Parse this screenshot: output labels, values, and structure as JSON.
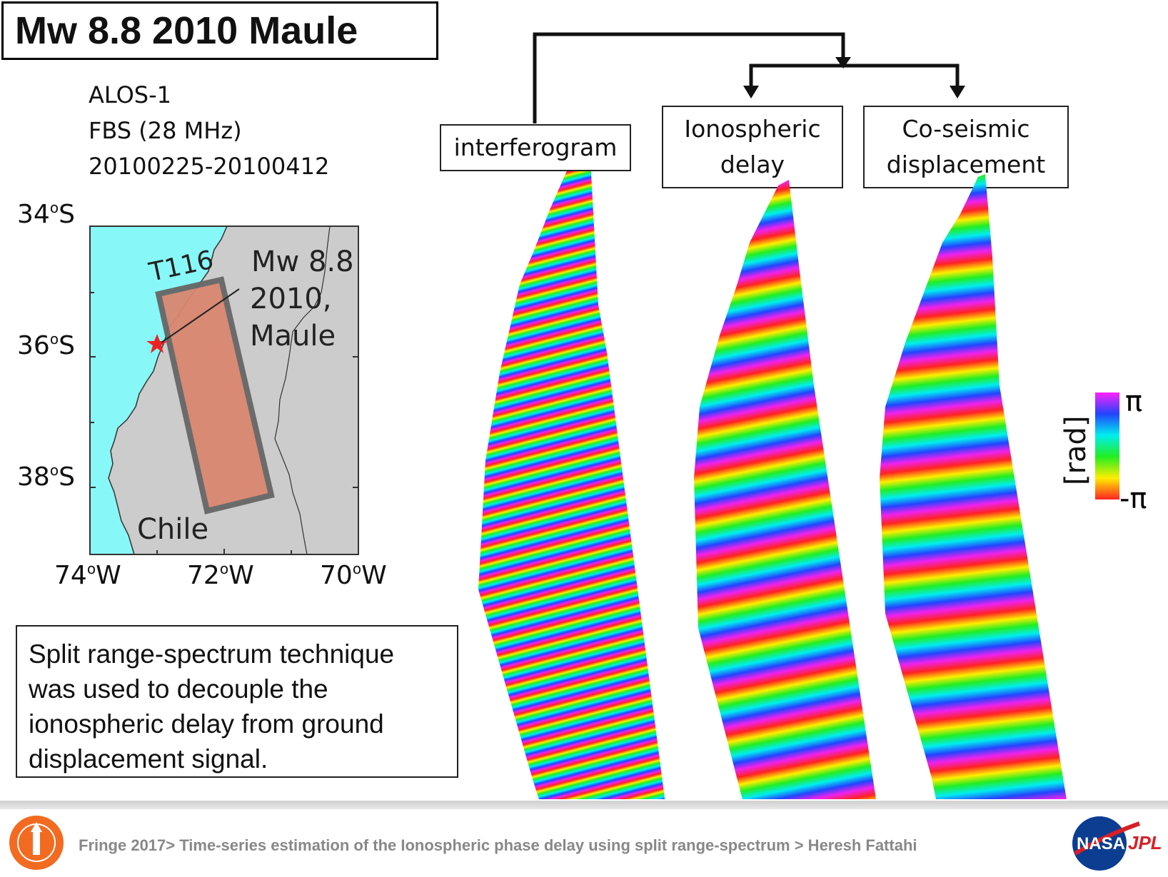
{
  "title": "Mw 8.8 2010 Maule",
  "meta": [
    "ALOS-1",
    "FBS (28 MHz)",
    "20100225-20100412"
  ],
  "map": {
    "lat_labels": [
      "34ₒS",
      "36ₒS",
      "38ₒS"
    ],
    "lat_num": [
      "34",
      "36",
      "38"
    ],
    "lon_num": [
      "74",
      "72",
      "70"
    ],
    "lat_suffix": "S",
    "lon_suffix": "W",
    "deg": "o",
    "track_label": "T116",
    "event_label": [
      "Mw 8.8",
      "2010,",
      "Maule"
    ],
    "country_label": "Chile",
    "colors": {
      "ocean": "#88f7f7",
      "land": "#cccccc",
      "swath": "#d98770",
      "swath_border": "#666666",
      "star": "#ee2222"
    }
  },
  "panels": {
    "interferogram": "interferogram",
    "ionospheric": [
      "Ionospheric",
      "delay"
    ],
    "coseismic": [
      "Co-seismic",
      "displacement"
    ]
  },
  "colorbar": {
    "top": "π",
    "bottom": "-π",
    "unit": "[rad]"
  },
  "description": [
    "Split range-spectrum technique",
    "was used to decouple the",
    "ionospheric delay from ground",
    "displacement signal."
  ],
  "footer": "Fringe 2017> Time-series estimation of the Ionospheric phase delay using split range-spectrum > Heresh Fattahi",
  "logos": {
    "left": "caltech-seal",
    "right_a": "NASA",
    "right_b": "JPL"
  }
}
